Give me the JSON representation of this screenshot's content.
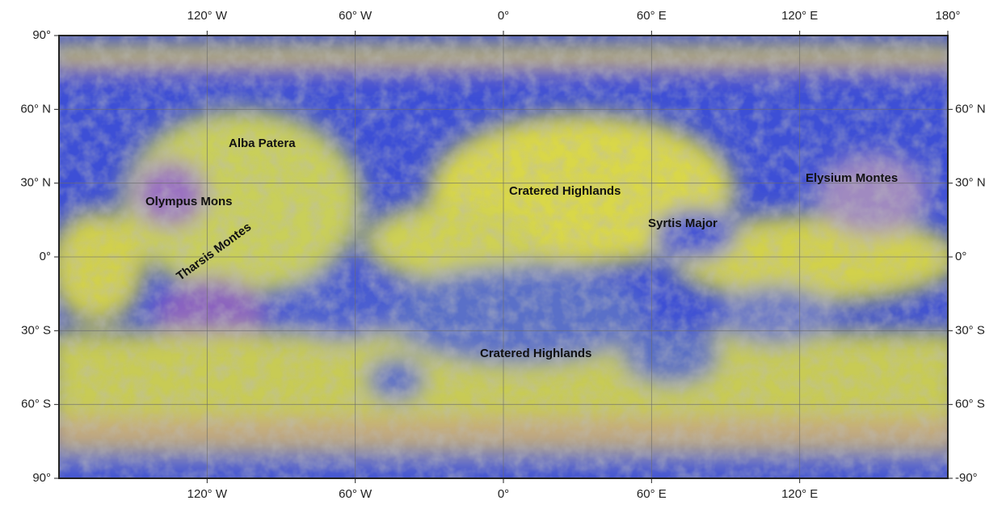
{
  "map": {
    "xlim": [
      -180,
      180
    ],
    "ylim": [
      -90,
      90
    ],
    "top_ticks": [
      {
        "value": -120,
        "label": "120° W"
      },
      {
        "value": -60,
        "label": "60° W"
      },
      {
        "value": 0,
        "label": "0°"
      },
      {
        "value": 60,
        "label": "60° E"
      },
      {
        "value": 120,
        "label": "120° E"
      },
      {
        "value": 180,
        "label": "180°"
      }
    ],
    "bottom_ticks": [
      {
        "value": -120,
        "label": "120° W"
      },
      {
        "value": -60,
        "label": "60° W"
      },
      {
        "value": 0,
        "label": "0°"
      },
      {
        "value": 60,
        "label": "60° E"
      },
      {
        "value": 120,
        "label": "120° E"
      }
    ],
    "left_ticks": [
      {
        "value": 90,
        "label": "90°"
      },
      {
        "value": 60,
        "label": "60° N"
      },
      {
        "value": 30,
        "label": "30° N"
      },
      {
        "value": 0,
        "label": "0°"
      },
      {
        "value": -30,
        "label": "30° S"
      },
      {
        "value": -60,
        "label": "60° S"
      },
      {
        "value": -90,
        "label": "90°"
      }
    ],
    "right_ticks": [
      {
        "value": 60,
        "label": "60° N"
      },
      {
        "value": 30,
        "label": "30° N"
      },
      {
        "value": 0,
        "label": "0°"
      },
      {
        "value": -30,
        "label": "30° S"
      },
      {
        "value": -60,
        "label": "60° S"
      },
      {
        "value": -90,
        "label": "-90°"
      }
    ],
    "places": [
      "Alba Patera",
      "Olympus Mons",
      "Tharsis Montes",
      "Cratered Highlands",
      "Syrtis Major",
      "Elysium Montes",
      "Cratered Highlands"
    ]
  }
}
